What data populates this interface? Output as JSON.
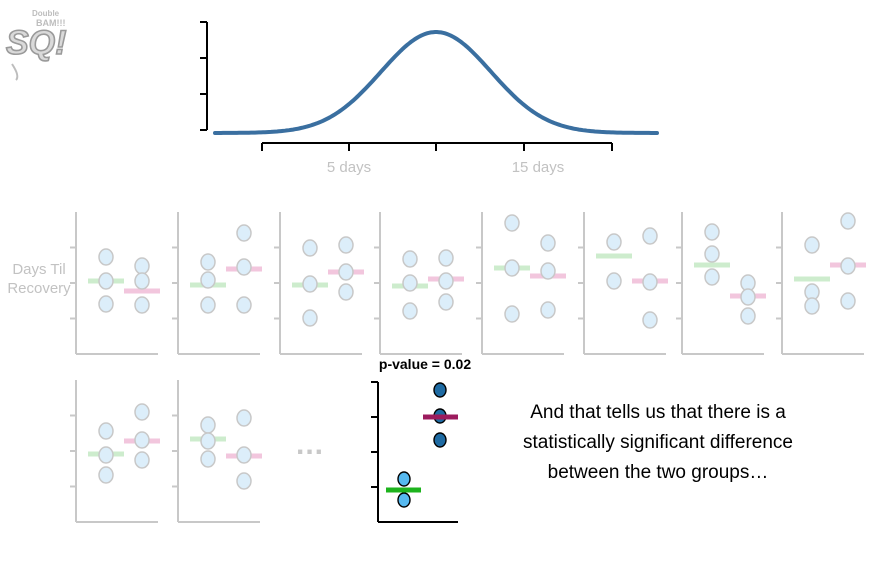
{
  "logo": {
    "big_text": "SQ!",
    "small_text_1": "Double",
    "small_text_2": "BAM!!!"
  },
  "distribution": {
    "x_tick_labels": [
      "5 days",
      "15 days"
    ],
    "curve_color": "#3a6fa0"
  },
  "y_axis_label": "Days Til Recovery",
  "ellipsis": "...",
  "p_value_label": "p-value = 0.02",
  "caption": "And that tells us that there is a statistically significant difference between the two groups…",
  "colors": {
    "faded_point_fill": "#dceefa",
    "faded_point_stroke": "#c8c8c8",
    "faded_mean_a": "#cdeccd",
    "faded_mean_b": "#f2c6dd",
    "highlight_a_fill": "#56b9f0",
    "highlight_b_fill": "#1e6ba3",
    "highlight_mean_a": "#1db31d",
    "highlight_mean_b": "#9c1b5e"
  },
  "chart_data": {
    "type": "scatter",
    "description_units": "days until recovery (relative values read from panels)",
    "highlighted_panel": {
      "group_a": [
        0.15,
        0.25
      ],
      "group_b": [
        0.8,
        0.7,
        0.6
      ],
      "group_a_mean": 0.2,
      "group_b_mean": 0.7,
      "p_value": 0.02
    }
  }
}
